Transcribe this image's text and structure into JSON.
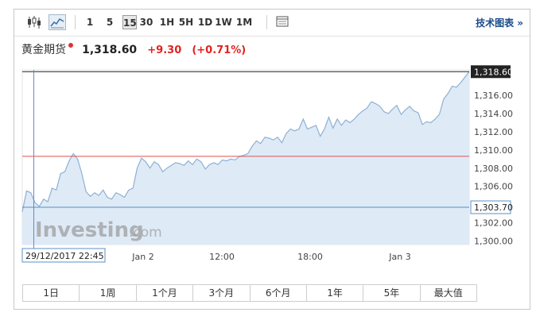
{
  "toolbar": {
    "intervals": [
      "1",
      "5",
      "15",
      "30",
      "1H",
      "5H",
      "1D",
      "1W",
      "1M"
    ],
    "selected_interval": "15",
    "advanced_link": "技术图表 »"
  },
  "quote": {
    "name": "黄金期货",
    "price": "1,318.60",
    "change": "+9.30",
    "change_pct": "(+0.71%)",
    "change_color": "#e0241f"
  },
  "watermark": {
    "text": "Investing",
    "suffix": ".com"
  },
  "crosshair": {
    "time_label": "29/12/2017 22:45",
    "price_label": "1,303.70"
  },
  "range_buttons": [
    "1日",
    "1周",
    "1个月",
    "3个月",
    "6个月",
    "1年",
    "5年",
    "最大值"
  ],
  "chart_data": {
    "type": "area",
    "x_tick_labels": [
      "Jan 2",
      "12:00",
      "18:00",
      "Jan 3"
    ],
    "y_tick_labels": [
      "1,318.60",
      "1,316.00",
      "1,314.00",
      "1,312.00",
      "1,310.00",
      "1,308.00",
      "1,306.00",
      "1,304.00",
      "1,302.00",
      "1,300.00"
    ],
    "ylim": [
      1299.6,
      1318.8
    ],
    "last_price": 1318.6,
    "prev_close": 1309.3,
    "crosshair_price": 1303.7,
    "x": [
      0,
      1,
      2,
      3,
      4,
      5,
      6,
      7,
      8,
      9,
      10,
      11,
      12,
      13,
      14,
      15,
      16,
      17,
      18,
      19,
      20,
      21,
      22,
      23,
      24,
      25,
      26,
      27,
      28,
      29,
      30,
      31,
      32,
      33,
      34,
      35,
      36,
      37,
      38,
      39,
      40,
      41,
      42,
      43,
      44,
      45,
      46,
      47,
      48,
      49,
      50,
      51,
      52,
      53,
      54,
      55,
      56,
      57,
      58,
      59,
      60,
      61,
      62,
      63,
      64,
      65,
      66,
      67,
      68,
      69,
      70,
      71,
      72,
      73,
      74,
      75,
      76,
      77,
      78,
      79,
      80,
      81,
      82,
      83,
      84,
      85,
      86,
      87,
      88,
      89,
      90,
      91,
      92,
      93,
      94,
      95,
      96,
      97,
      98,
      99,
      100,
      101,
      102,
      103,
      104,
      105
    ],
    "values": [
      1303.2,
      1305.5,
      1305.3,
      1304.2,
      1303.8,
      1304.6,
      1304.3,
      1305.8,
      1305.6,
      1307.4,
      1307.6,
      1308.8,
      1309.6,
      1309.0,
      1307.4,
      1305.4,
      1304.9,
      1305.3,
      1305.0,
      1305.6,
      1304.8,
      1304.6,
      1305.3,
      1305.1,
      1304.8,
      1305.6,
      1305.8,
      1308.0,
      1309.1,
      1308.7,
      1308.0,
      1308.7,
      1308.4,
      1307.6,
      1308.0,
      1308.3,
      1308.6,
      1308.5,
      1308.3,
      1308.8,
      1308.4,
      1309.0,
      1308.7,
      1307.9,
      1308.4,
      1308.6,
      1308.4,
      1308.9,
      1308.8,
      1309.0,
      1308.9,
      1309.3,
      1309.4,
      1309.6,
      1310.4,
      1311.0,
      1310.7,
      1311.4,
      1311.3,
      1311.1,
      1311.4,
      1310.8,
      1311.8,
      1312.3,
      1312.1,
      1312.3,
      1313.4,
      1312.3,
      1312.5,
      1312.7,
      1311.5,
      1312.3,
      1313.6,
      1312.4,
      1313.4,
      1312.7,
      1313.3,
      1313.0,
      1313.4,
      1313.9,
      1314.3,
      1314.6,
      1315.3,
      1315.1,
      1314.8,
      1314.2,
      1314.0,
      1314.5,
      1314.9,
      1313.9,
      1314.4,
      1314.8,
      1314.3,
      1314.1,
      1312.8,
      1313.1,
      1313.0,
      1313.4,
      1313.9,
      1315.6,
      1316.2,
      1317.0,
      1316.9,
      1317.4,
      1318.0,
      1318.6
    ]
  }
}
